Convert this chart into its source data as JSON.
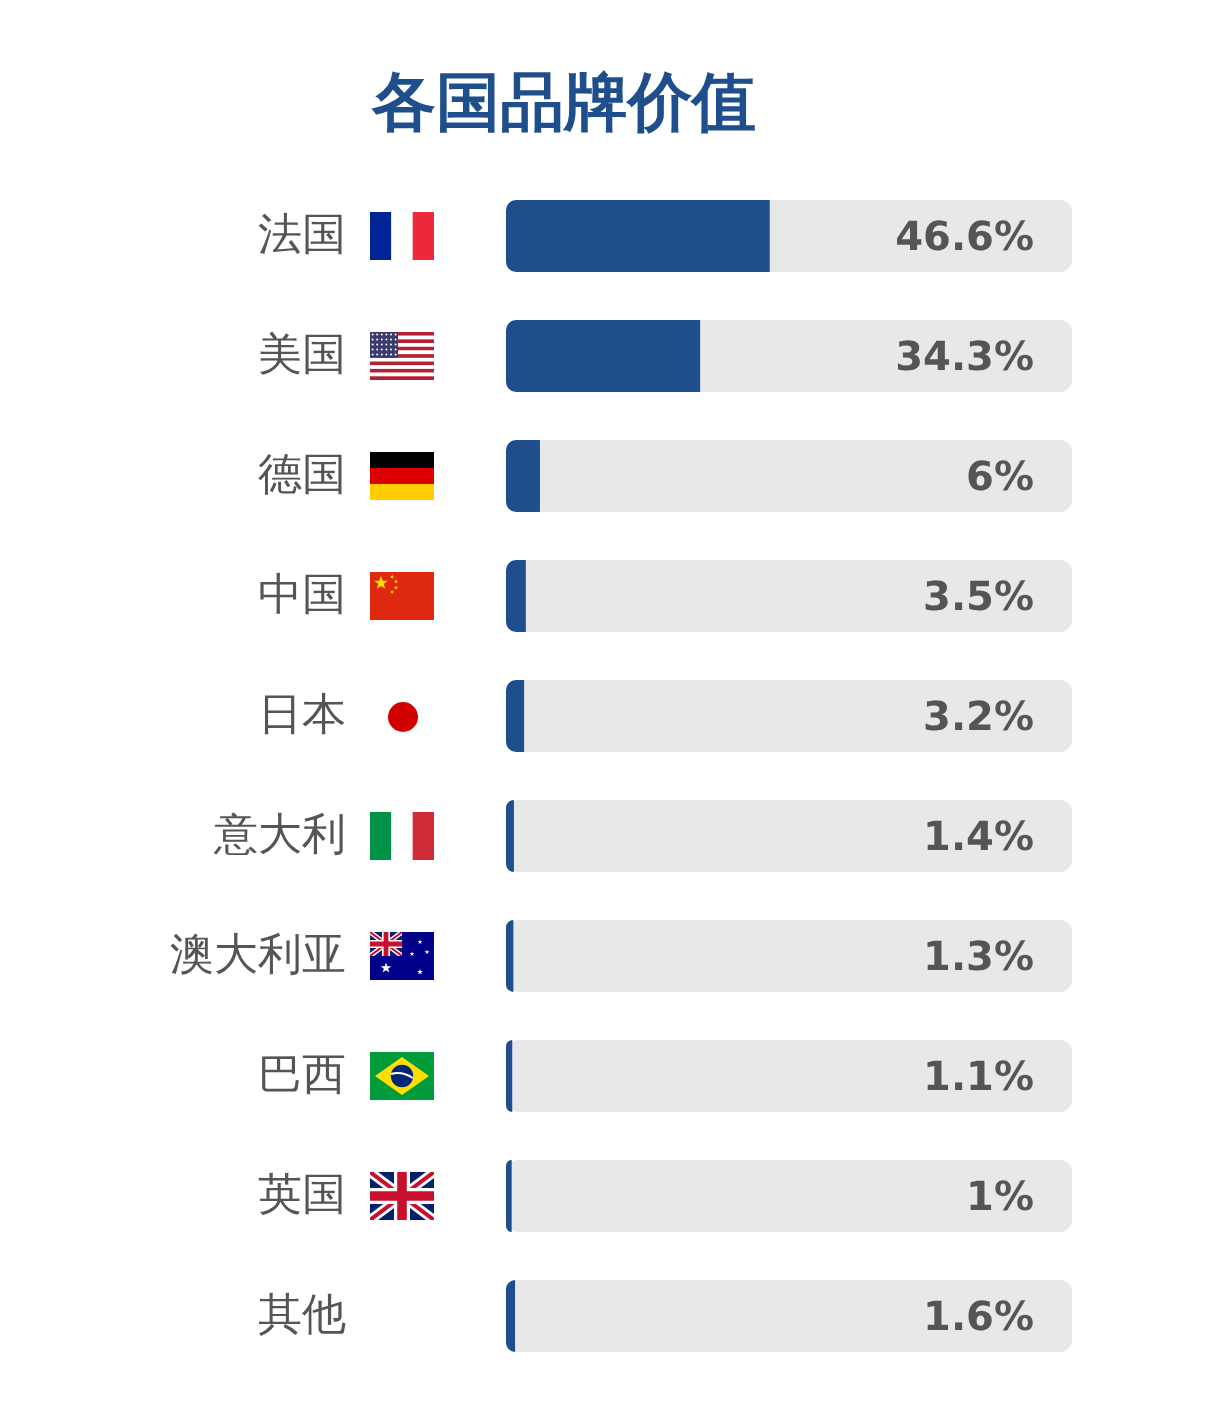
{
  "chart_data": {
    "type": "bar",
    "title": "各国品牌价值",
    "orientation": "horizontal",
    "categories": [
      "法国",
      "美国",
      "德国",
      "中国",
      "日本",
      "意大利",
      "澳大利亚",
      "巴西",
      "英国",
      "其他"
    ],
    "values": [
      46.6,
      34.3,
      6,
      3.5,
      3.2,
      1.4,
      1.3,
      1.1,
      1,
      1.6
    ],
    "value_labels": [
      "46.6%",
      "34.3%",
      "6%",
      "3.5%",
      "3.2%",
      "1.4%",
      "1.3%",
      "1.1%",
      "1%",
      "1.6%"
    ],
    "color": "#1f4e8c",
    "xlim": [
      0,
      100
    ],
    "tick_labels": "y"
  }
}
